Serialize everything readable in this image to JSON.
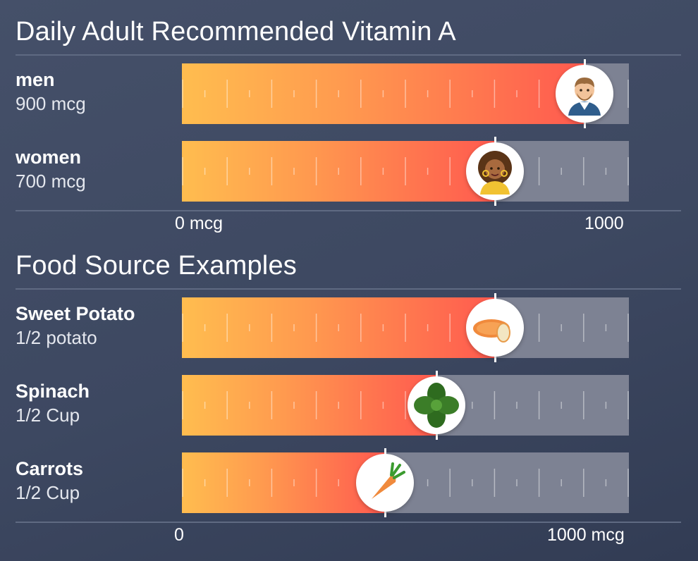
{
  "title": "Daily Adult Recommended Vitamin A",
  "food_title": "Food Source Examples",
  "colors": {
    "background": "#3f4a63",
    "bar_track": "#7d8293",
    "bar_gradient_start": "#ffbd4f",
    "bar_gradient_end": "#ff5a4f",
    "divider": "#5f6a82"
  },
  "chart_data": [
    {
      "type": "bar",
      "orientation": "horizontal",
      "title": "Daily Adult Recommended Vitamin A",
      "xlim": [
        0,
        1000
      ],
      "x_tick_labels": [
        "0 mcg",
        "1000"
      ],
      "categories": [
        "men",
        "women"
      ],
      "sublabels": [
        "900 mcg",
        "700 mcg"
      ],
      "values": [
        900,
        700
      ],
      "icons": [
        "man-avatar-icon",
        "woman-avatar-icon"
      ]
    },
    {
      "type": "bar",
      "orientation": "horizontal",
      "title": "Food Source Examples",
      "xlim": [
        0,
        1000
      ],
      "x_tick_labels": [
        "0",
        "1000 mcg"
      ],
      "categories": [
        "Sweet Potato",
        "Spinach",
        "Carrots"
      ],
      "sublabels": [
        "1/2 potato",
        "1/2 Cup",
        "1/2 Cup"
      ],
      "values": [
        700,
        570,
        455
      ],
      "icons": [
        "sweet-potato-icon",
        "spinach-icon",
        "carrot-icon"
      ]
    }
  ]
}
